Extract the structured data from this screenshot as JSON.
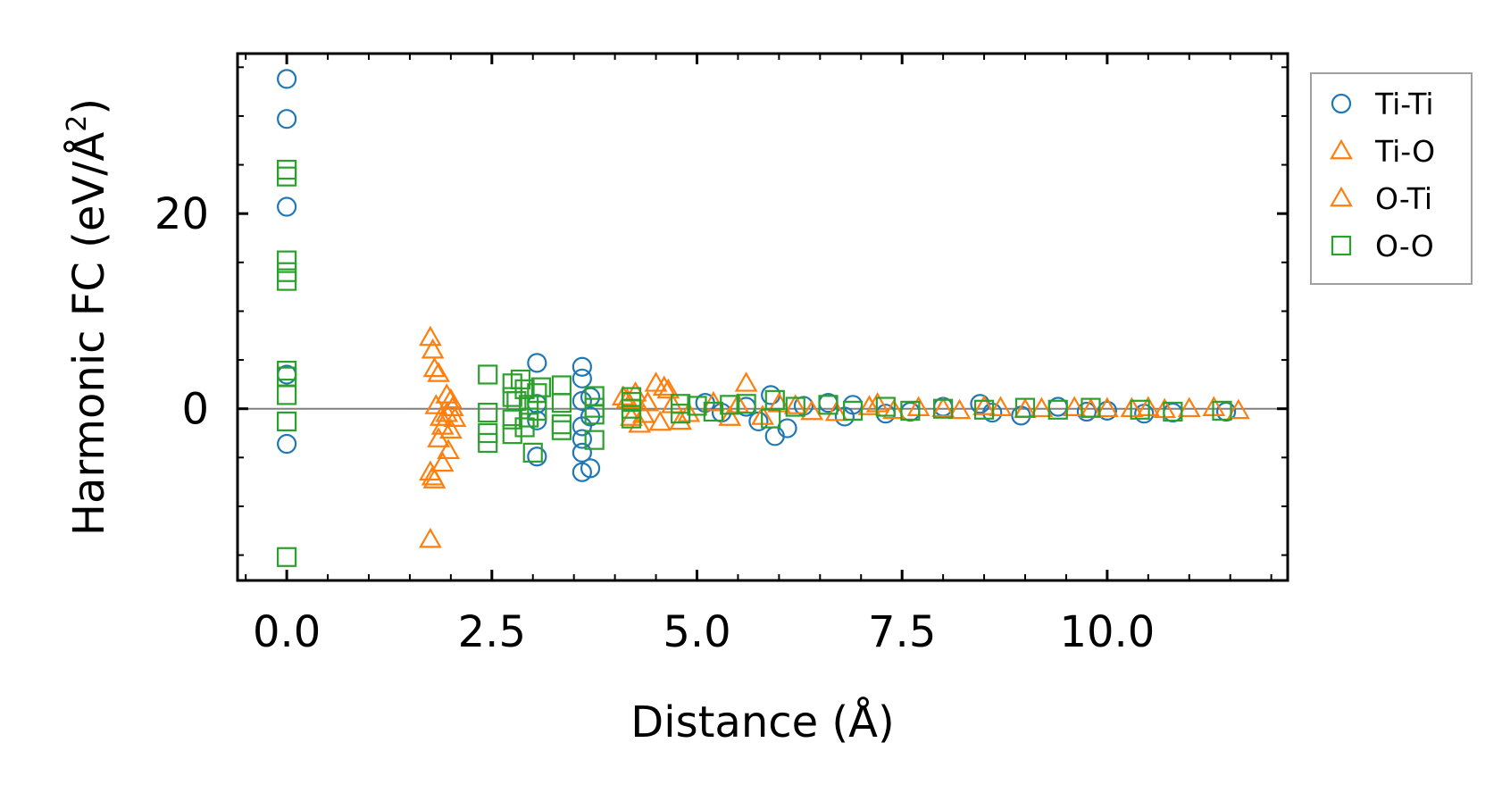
{
  "chart_data": {
    "type": "scatter",
    "title": "",
    "xlabel": "Distance (Å)",
    "ylabel": "Harmonic FC (eV/Å",
    "ylabel_superscript": "2",
    "ylabel_suffix": ")",
    "xlim": [
      -0.6,
      12.2
    ],
    "ylim": [
      -17.6,
      36.4
    ],
    "x_ticks": [
      0.0,
      2.5,
      5.0,
      7.5,
      10.0
    ],
    "x_tick_labels": [
      "0.0",
      "2.5",
      "5.0",
      "7.5",
      "10.0"
    ],
    "y_ticks": [
      0,
      20
    ],
    "y_tick_labels": [
      "0",
      "20"
    ],
    "zero_line": true,
    "legend_position": "outside-right-top",
    "series": [
      {
        "name": "Ti-Ti",
        "color": "#1f77b4",
        "marker": "circle",
        "points": [
          [
            0.0,
            33.8
          ],
          [
            0.0,
            29.7
          ],
          [
            0.0,
            20.7
          ],
          [
            0.0,
            3.5
          ],
          [
            0.0,
            -3.6
          ],
          [
            3.05,
            4.7
          ],
          [
            3.05,
            -4.9
          ],
          [
            3.05,
            -1.2
          ],
          [
            3.05,
            0.5
          ],
          [
            3.6,
            4.3
          ],
          [
            3.6,
            3.1
          ],
          [
            3.6,
            -6.5
          ],
          [
            3.6,
            -4.5
          ],
          [
            3.6,
            -3.1
          ],
          [
            3.6,
            -1.8
          ],
          [
            3.6,
            0.8
          ],
          [
            3.7,
            -6.1
          ],
          [
            3.7,
            1.2
          ],
          [
            3.7,
            -0.8
          ],
          [
            5.1,
            0.6
          ],
          [
            5.3,
            -0.4
          ],
          [
            5.6,
            0.2
          ],
          [
            5.75,
            -1.3
          ],
          [
            5.9,
            1.4
          ],
          [
            5.95,
            -2.8
          ],
          [
            6.1,
            -2.0
          ],
          [
            6.3,
            0.3
          ],
          [
            6.6,
            0.6
          ],
          [
            6.8,
            -0.8
          ],
          [
            6.9,
            0.4
          ],
          [
            7.3,
            -0.5
          ],
          [
            7.6,
            -0.3
          ],
          [
            8.0,
            0.2
          ],
          [
            8.45,
            0.5
          ],
          [
            8.6,
            -0.4
          ],
          [
            8.95,
            -0.7
          ],
          [
            9.4,
            0.2
          ],
          [
            9.75,
            -0.3
          ],
          [
            10.0,
            -0.2
          ],
          [
            10.45,
            -0.5
          ],
          [
            10.8,
            -0.4
          ],
          [
            11.45,
            -0.3
          ]
        ]
      },
      {
        "name": "Ti-O",
        "color": "#ff7f0e",
        "marker": "triangle",
        "points": [
          [
            1.75,
            7.3
          ],
          [
            1.78,
            6.0
          ],
          [
            1.8,
            4.1
          ],
          [
            1.85,
            3.6
          ],
          [
            1.95,
            1.4
          ],
          [
            2.0,
            0.9
          ],
          [
            1.95,
            -0.5
          ],
          [
            1.9,
            -1.8
          ],
          [
            1.85,
            -3.1
          ],
          [
            2.0,
            -2.2
          ],
          [
            2.05,
            -1.0
          ],
          [
            1.75,
            -6.5
          ],
          [
            1.8,
            -7.3
          ],
          [
            1.9,
            -5.6
          ],
          [
            1.75,
            -13.4
          ],
          [
            4.1,
            1.2
          ],
          [
            4.25,
            1.6
          ],
          [
            4.4,
            0.6
          ],
          [
            4.5,
            2.6
          ],
          [
            4.6,
            2.2
          ],
          [
            4.7,
            0.4
          ],
          [
            4.3,
            -1.6
          ],
          [
            4.55,
            -1.4
          ],
          [
            4.2,
            -0.9
          ],
          [
            5.6,
            2.6
          ],
          [
            5.4,
            -0.9
          ],
          [
            6.0,
            0.5
          ],
          [
            6.4,
            -0.3
          ],
          [
            7.1,
            0.2
          ],
          [
            7.4,
            -0.2
          ],
          [
            8.0,
            0.0
          ],
          [
            8.5,
            0.2
          ],
          [
            9.0,
            -0.1
          ],
          [
            9.6,
            0.1
          ],
          [
            10.0,
            0.0
          ],
          [
            10.5,
            0.1
          ],
          [
            11.0,
            0.0
          ],
          [
            11.6,
            -0.2
          ]
        ]
      },
      {
        "name": "O-Ti",
        "color": "#ff7f0e",
        "marker": "triangle",
        "points": [
          [
            1.78,
            -7.0
          ],
          [
            1.82,
            0.3
          ],
          [
            1.97,
            -4.3
          ],
          [
            2.02,
            0.1
          ],
          [
            1.88,
            -0.9
          ],
          [
            4.15,
            0.9
          ],
          [
            4.35,
            -0.6
          ],
          [
            4.65,
            1.9
          ],
          [
            4.8,
            -1.3
          ],
          [
            4.9,
            -0.5
          ],
          [
            5.2,
            0.6
          ],
          [
            5.5,
            0.4
          ],
          [
            5.8,
            -0.8
          ],
          [
            6.2,
            0.3
          ],
          [
            6.7,
            -0.4
          ],
          [
            7.2,
            0.5
          ],
          [
            7.7,
            0.1
          ],
          [
            8.2,
            -0.2
          ],
          [
            8.7,
            0.1
          ],
          [
            9.2,
            0.0
          ],
          [
            9.8,
            -0.1
          ],
          [
            10.3,
            0.0
          ],
          [
            10.7,
            -0.1
          ],
          [
            11.3,
            0.1
          ]
        ]
      },
      {
        "name": "O-O",
        "color": "#2ca02c",
        "marker": "square",
        "points": [
          [
            0.0,
            24.5
          ],
          [
            0.0,
            23.8
          ],
          [
            0.0,
            15.2
          ],
          [
            0.0,
            14.0
          ],
          [
            0.0,
            13.1
          ],
          [
            0.0,
            3.9
          ],
          [
            0.0,
            3.3
          ],
          [
            0.0,
            1.4
          ],
          [
            0.0,
            -1.3
          ],
          [
            0.0,
            -15.2
          ],
          [
            2.45,
            3.5
          ],
          [
            2.45,
            -3.5
          ],
          [
            2.45,
            -2.5
          ],
          [
            2.45,
            -0.4
          ],
          [
            2.75,
            2.6
          ],
          [
            2.75,
            1.2
          ],
          [
            2.75,
            -2.6
          ],
          [
            2.75,
            -1.1
          ],
          [
            2.8,
            0.8
          ],
          [
            2.85,
            3.0
          ],
          [
            2.9,
            2.0
          ],
          [
            2.9,
            -1.9
          ],
          [
            2.95,
            0.4
          ],
          [
            2.95,
            -0.9
          ],
          [
            3.0,
            -4.5
          ],
          [
            3.05,
            1.6
          ],
          [
            3.05,
            -0.2
          ],
          [
            3.1,
            2.2
          ],
          [
            3.35,
            2.4
          ],
          [
            3.35,
            -1.6
          ],
          [
            3.35,
            -2.2
          ],
          [
            3.35,
            0.6
          ],
          [
            3.75,
            1.3
          ],
          [
            3.75,
            -3.2
          ],
          [
            3.75,
            -0.6
          ],
          [
            3.75,
            0.1
          ],
          [
            4.2,
            0.7
          ],
          [
            4.2,
            -1.0
          ],
          [
            4.2,
            0.0
          ],
          [
            4.2,
            1.2
          ],
          [
            4.8,
            0.5
          ],
          [
            4.8,
            -0.5
          ],
          [
            5.0,
            0.3
          ],
          [
            5.2,
            -0.3
          ],
          [
            5.4,
            0.4
          ],
          [
            5.6,
            0.5
          ],
          [
            5.9,
            -1.0
          ],
          [
            5.95,
            0.9
          ],
          [
            6.2,
            0.2
          ],
          [
            6.6,
            0.4
          ],
          [
            6.9,
            -0.2
          ],
          [
            7.3,
            0.2
          ],
          [
            7.6,
            -0.2
          ],
          [
            8.0,
            0.0
          ],
          [
            8.5,
            -0.1
          ],
          [
            9.0,
            0.1
          ],
          [
            9.4,
            -0.1
          ],
          [
            9.8,
            0.1
          ],
          [
            10.4,
            -0.1
          ],
          [
            10.8,
            -0.3
          ],
          [
            11.4,
            -0.2
          ]
        ]
      }
    ]
  }
}
